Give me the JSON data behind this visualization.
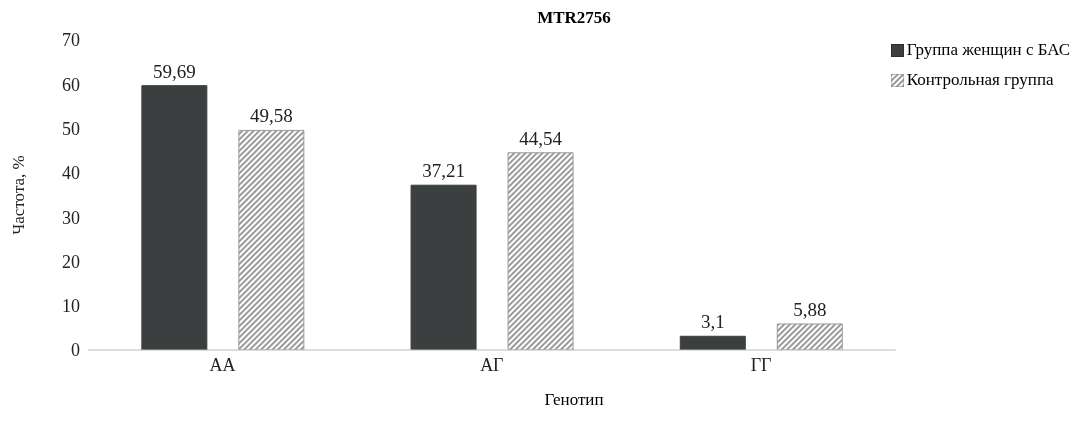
{
  "chart_data": {
    "type": "bar",
    "title": "MTR2756",
    "xlabel": "Генотип",
    "ylabel": "Частота, %",
    "categories": [
      "АА",
      "АГ",
      "ГГ"
    ],
    "series": [
      {
        "name": "Группа женщин с БАС",
        "color": "#3b3f3f",
        "values": [
          59.69,
          37.21,
          3.1
        ],
        "value_labels": [
          "59,69",
          "37,21",
          "3,1"
        ]
      },
      {
        "name": "Контрольная группа",
        "color": "#9a9a9a",
        "values": [
          49.58,
          44.54,
          5.88
        ],
        "value_labels": [
          "49,58",
          "44,54",
          "5,88"
        ]
      }
    ],
    "ylim": [
      0,
      70
    ],
    "yticks": [
      0,
      10,
      20,
      30,
      40,
      50,
      60,
      70
    ],
    "grid": false,
    "legend": "top right"
  }
}
